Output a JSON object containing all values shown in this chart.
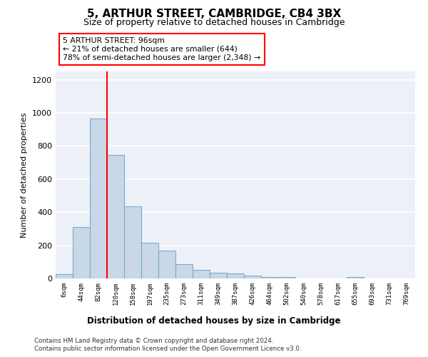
{
  "title1": "5, ARTHUR STREET, CAMBRIDGE, CB4 3BX",
  "title2": "Size of property relative to detached houses in Cambridge",
  "xlabel": "Distribution of detached houses by size in Cambridge",
  "ylabel": "Number of detached properties",
  "bin_labels": [
    "6sqm",
    "44sqm",
    "82sqm",
    "120sqm",
    "158sqm",
    "197sqm",
    "235sqm",
    "273sqm",
    "311sqm",
    "349sqm",
    "387sqm",
    "426sqm",
    "464sqm",
    "502sqm",
    "540sqm",
    "578sqm",
    "617sqm",
    "655sqm",
    "693sqm",
    "731sqm",
    "769sqm"
  ],
  "bar_heights": [
    25,
    310,
    965,
    745,
    435,
    215,
    170,
    85,
    50,
    35,
    30,
    18,
    10,
    9,
    0,
    0,
    0,
    10,
    0,
    0,
    0
  ],
  "bar_color": "#c8d8e8",
  "bar_edge_color": "#7aaacc",
  "red_line_x": 2.5,
  "annotation_text": "5 ARTHUR STREET: 96sqm\n← 21% of detached houses are smaller (644)\n78% of semi-detached houses are larger (2,348) →",
  "annotation_box_color": "white",
  "annotation_box_edge": "red",
  "ylim": [
    0,
    1250
  ],
  "yticks": [
    0,
    200,
    400,
    600,
    800,
    1000,
    1200
  ],
  "footer1": "Contains HM Land Registry data © Crown copyright and database right 2024.",
  "footer2": "Contains public sector information licensed under the Open Government Licence v3.0.",
  "background_color": "#edf1f7",
  "grid_color": "white"
}
